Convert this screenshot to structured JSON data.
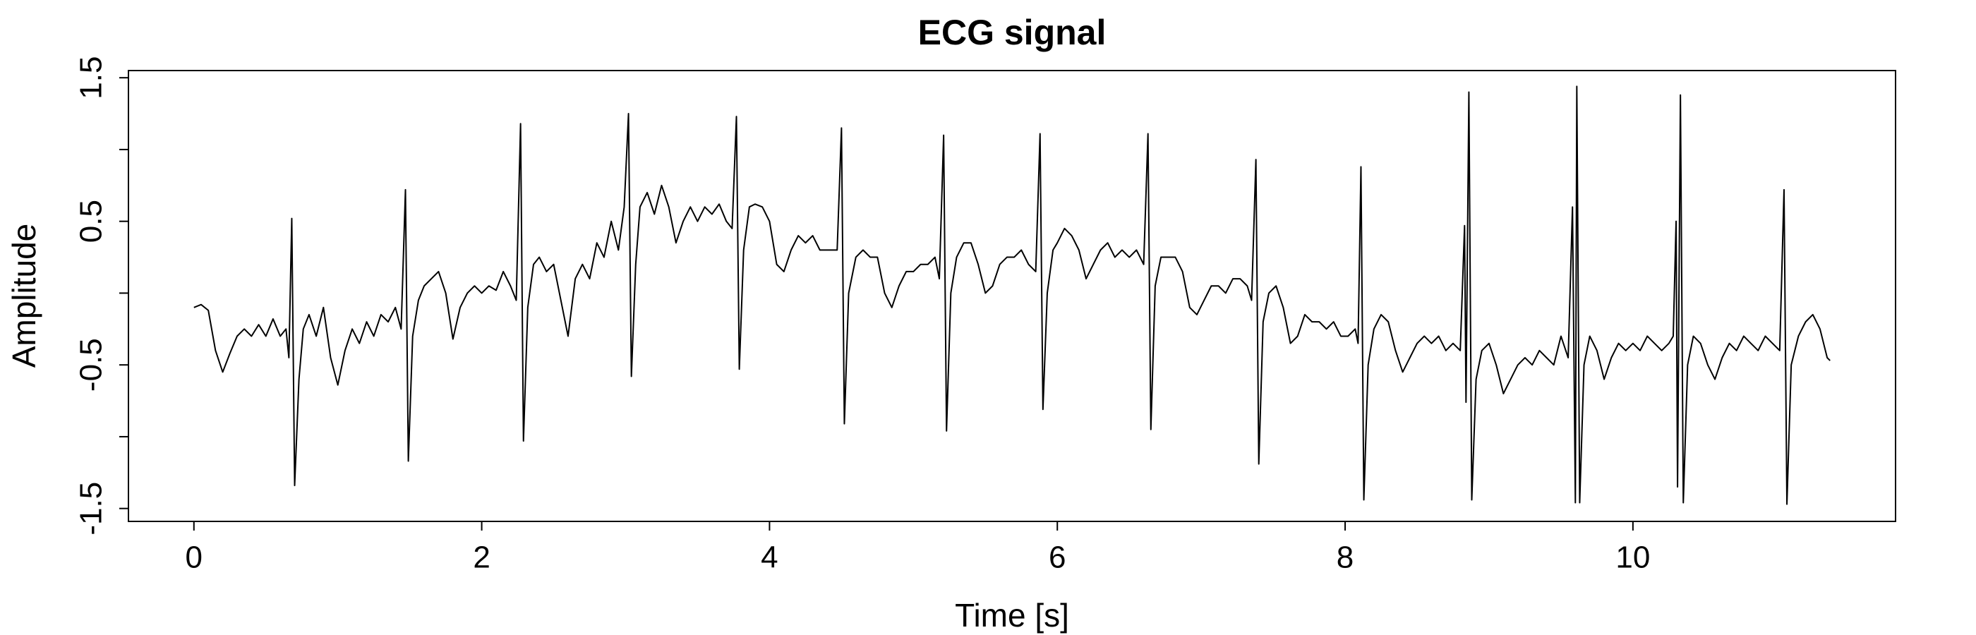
{
  "chart_data": {
    "type": "line",
    "title": "ECG signal",
    "x_label": "Time [s]",
    "y_label": "Amplitude",
    "color": "#000000",
    "xlim": [
      -0.455,
      11.825
    ],
    "ylim": [
      -1.59,
      1.55
    ],
    "xticks": [
      0,
      2,
      4,
      6,
      8,
      10
    ],
    "yticks": [
      -1.5,
      -0.5,
      0.5,
      1.5
    ],
    "yticks_minor": [
      -1,
      0,
      1
    ],
    "grid": false,
    "x": [
      0,
      0.05,
      0.1,
      0.15,
      0.2,
      0.25,
      0.3,
      0.35,
      0.4,
      0.45,
      0.5,
      0.55,
      0.6,
      0.64,
      0.66,
      0.68,
      0.7,
      0.73,
      0.76,
      0.8,
      0.85,
      0.9,
      0.95,
      1.0,
      1.05,
      1.1,
      1.15,
      1.2,
      1.25,
      1.3,
      1.35,
      1.4,
      1.44,
      1.47,
      1.49,
      1.52,
      1.56,
      1.6,
      1.65,
      1.7,
      1.75,
      1.8,
      1.85,
      1.9,
      1.95,
      2.0,
      2.05,
      2.1,
      2.15,
      2.2,
      2.24,
      2.27,
      2.29,
      2.32,
      2.36,
      2.4,
      2.45,
      2.5,
      2.55,
      2.6,
      2.65,
      2.7,
      2.75,
      2.8,
      2.85,
      2.9,
      2.95,
      2.99,
      3.02,
      3.04,
      3.07,
      3.1,
      3.15,
      3.2,
      3.25,
      3.3,
      3.35,
      3.4,
      3.45,
      3.5,
      3.55,
      3.6,
      3.65,
      3.7,
      3.74,
      3.77,
      3.79,
      3.82,
      3.86,
      3.9,
      3.95,
      4.0,
      4.05,
      4.1,
      4.15,
      4.2,
      4.25,
      4.3,
      4.35,
      4.4,
      4.47,
      4.5,
      4.52,
      4.55,
      4.6,
      4.65,
      4.7,
      4.75,
      4.8,
      4.85,
      4.9,
      4.95,
      5.0,
      5.05,
      5.1,
      5.15,
      5.18,
      5.21,
      5.23,
      5.26,
      5.3,
      5.35,
      5.4,
      5.45,
      5.5,
      5.55,
      5.6,
      5.65,
      5.7,
      5.75,
      5.8,
      5.85,
      5.88,
      5.9,
      5.93,
      5.97,
      6.0,
      6.05,
      6.1,
      6.15,
      6.2,
      6.25,
      6.3,
      6.35,
      6.4,
      6.45,
      6.5,
      6.55,
      6.6,
      6.63,
      6.65,
      6.68,
      6.72,
      6.77,
      6.82,
      6.87,
      6.92,
      6.97,
      7.02,
      7.07,
      7.12,
      7.17,
      7.22,
      7.27,
      7.32,
      7.35,
      7.38,
      7.4,
      7.43,
      7.47,
      7.52,
      7.57,
      7.62,
      7.67,
      7.72,
      7.77,
      7.82,
      7.87,
      7.92,
      7.97,
      8.02,
      8.07,
      8.09,
      8.11,
      8.13,
      8.16,
      8.2,
      8.25,
      8.3,
      8.35,
      8.4,
      8.45,
      8.5,
      8.55,
      8.6,
      8.65,
      8.7,
      8.75,
      8.8,
      8.83,
      8.84,
      8.86,
      8.88,
      8.91,
      8.95,
      9.0,
      9.05,
      9.1,
      9.15,
      9.2,
      9.25,
      9.3,
      9.35,
      9.4,
      9.45,
      9.5,
      9.55,
      9.58,
      9.6,
      9.61,
      9.63,
      9.66,
      9.7,
      9.75,
      9.8,
      9.85,
      9.9,
      9.95,
      10.0,
      10.05,
      10.1,
      10.15,
      10.2,
      10.25,
      10.28,
      10.3,
      10.31,
      10.33,
      10.35,
      10.38,
      10.42,
      10.47,
      10.52,
      10.57,
      10.62,
      10.67,
      10.72,
      10.77,
      10.82,
      10.87,
      10.92,
      10.97,
      11.02,
      11.05,
      11.07,
      11.1,
      11.15,
      11.2,
      11.25,
      11.3,
      11.35,
      11.37
    ],
    "values": [
      -0.1,
      -0.08,
      -0.12,
      -0.4,
      -0.55,
      -0.42,
      -0.3,
      -0.25,
      -0.3,
      -0.22,
      -0.3,
      -0.18,
      -0.3,
      -0.25,
      -0.45,
      0.52,
      -1.34,
      -0.6,
      -0.25,
      -0.15,
      -0.3,
      -0.1,
      -0.45,
      -0.64,
      -0.4,
      -0.25,
      -0.35,
      -0.2,
      -0.3,
      -0.15,
      -0.2,
      -0.1,
      -0.25,
      0.72,
      -1.17,
      -0.3,
      -0.05,
      0.05,
      0.1,
      0.15,
      0.0,
      -0.32,
      -0.1,
      0.0,
      0.05,
      0.0,
      0.05,
      0.02,
      0.15,
      0.05,
      -0.05,
      1.18,
      -1.03,
      -0.1,
      0.2,
      0.25,
      0.15,
      0.2,
      -0.05,
      -0.3,
      0.1,
      0.2,
      0.1,
      0.35,
      0.25,
      0.5,
      0.3,
      0.6,
      1.25,
      -0.58,
      0.2,
      0.6,
      0.7,
      0.55,
      0.75,
      0.6,
      0.35,
      0.5,
      0.6,
      0.5,
      0.6,
      0.55,
      0.62,
      0.5,
      0.45,
      1.23,
      -0.53,
      0.3,
      0.6,
      0.62,
      0.6,
      0.5,
      0.2,
      0.15,
      0.3,
      0.4,
      0.35,
      0.4,
      0.3,
      0.3,
      0.3,
      1.15,
      -0.91,
      0.0,
      0.25,
      0.3,
      0.25,
      0.25,
      0.0,
      -0.1,
      0.05,
      0.15,
      0.15,
      0.2,
      0.2,
      0.25,
      0.1,
      1.1,
      -0.96,
      0.0,
      0.25,
      0.35,
      0.35,
      0.2,
      0.0,
      0.05,
      0.2,
      0.25,
      0.25,
      0.3,
      0.2,
      0.15,
      1.11,
      -0.81,
      0.0,
      0.3,
      0.35,
      0.45,
      0.4,
      0.3,
      0.1,
      0.2,
      0.3,
      0.35,
      0.25,
      0.3,
      0.25,
      0.3,
      0.2,
      1.11,
      -0.95,
      0.05,
      0.25,
      0.25,
      0.25,
      0.15,
      -0.1,
      -0.15,
      -0.05,
      0.05,
      0.05,
      0.0,
      0.1,
      0.1,
      0.05,
      -0.05,
      0.93,
      -1.19,
      -0.2,
      0.0,
      0.05,
      -0.1,
      -0.35,
      -0.3,
      -0.15,
      -0.2,
      -0.2,
      -0.25,
      -0.2,
      -0.3,
      -0.3,
      -0.25,
      -0.35,
      0.88,
      -1.44,
      -0.5,
      -0.25,
      -0.15,
      -0.2,
      -0.4,
      -0.55,
      -0.45,
      -0.35,
      -0.3,
      -0.35,
      -0.3,
      -0.4,
      -0.35,
      -0.4,
      0.47,
      -0.76,
      1.4,
      -1.44,
      -0.6,
      -0.4,
      -0.35,
      -0.5,
      -0.7,
      -0.6,
      -0.5,
      -0.45,
      -0.5,
      -0.4,
      -0.45,
      -0.5,
      -0.3,
      -0.45,
      0.6,
      -1.46,
      1.44,
      -1.46,
      -0.5,
      -0.3,
      -0.4,
      -0.6,
      -0.45,
      -0.35,
      -0.4,
      -0.35,
      -0.4,
      -0.3,
      -0.35,
      -0.4,
      -0.35,
      -0.3,
      0.5,
      -1.35,
      1.38,
      -1.46,
      -0.5,
      -0.3,
      -0.35,
      -0.5,
      -0.6,
      -0.45,
      -0.35,
      -0.4,
      -0.3,
      -0.35,
      -0.4,
      -0.3,
      -0.35,
      -0.4,
      0.72,
      -1.47,
      -0.5,
      -0.3,
      -0.2,
      -0.15,
      -0.25,
      -0.45,
      -0.47
    ]
  }
}
